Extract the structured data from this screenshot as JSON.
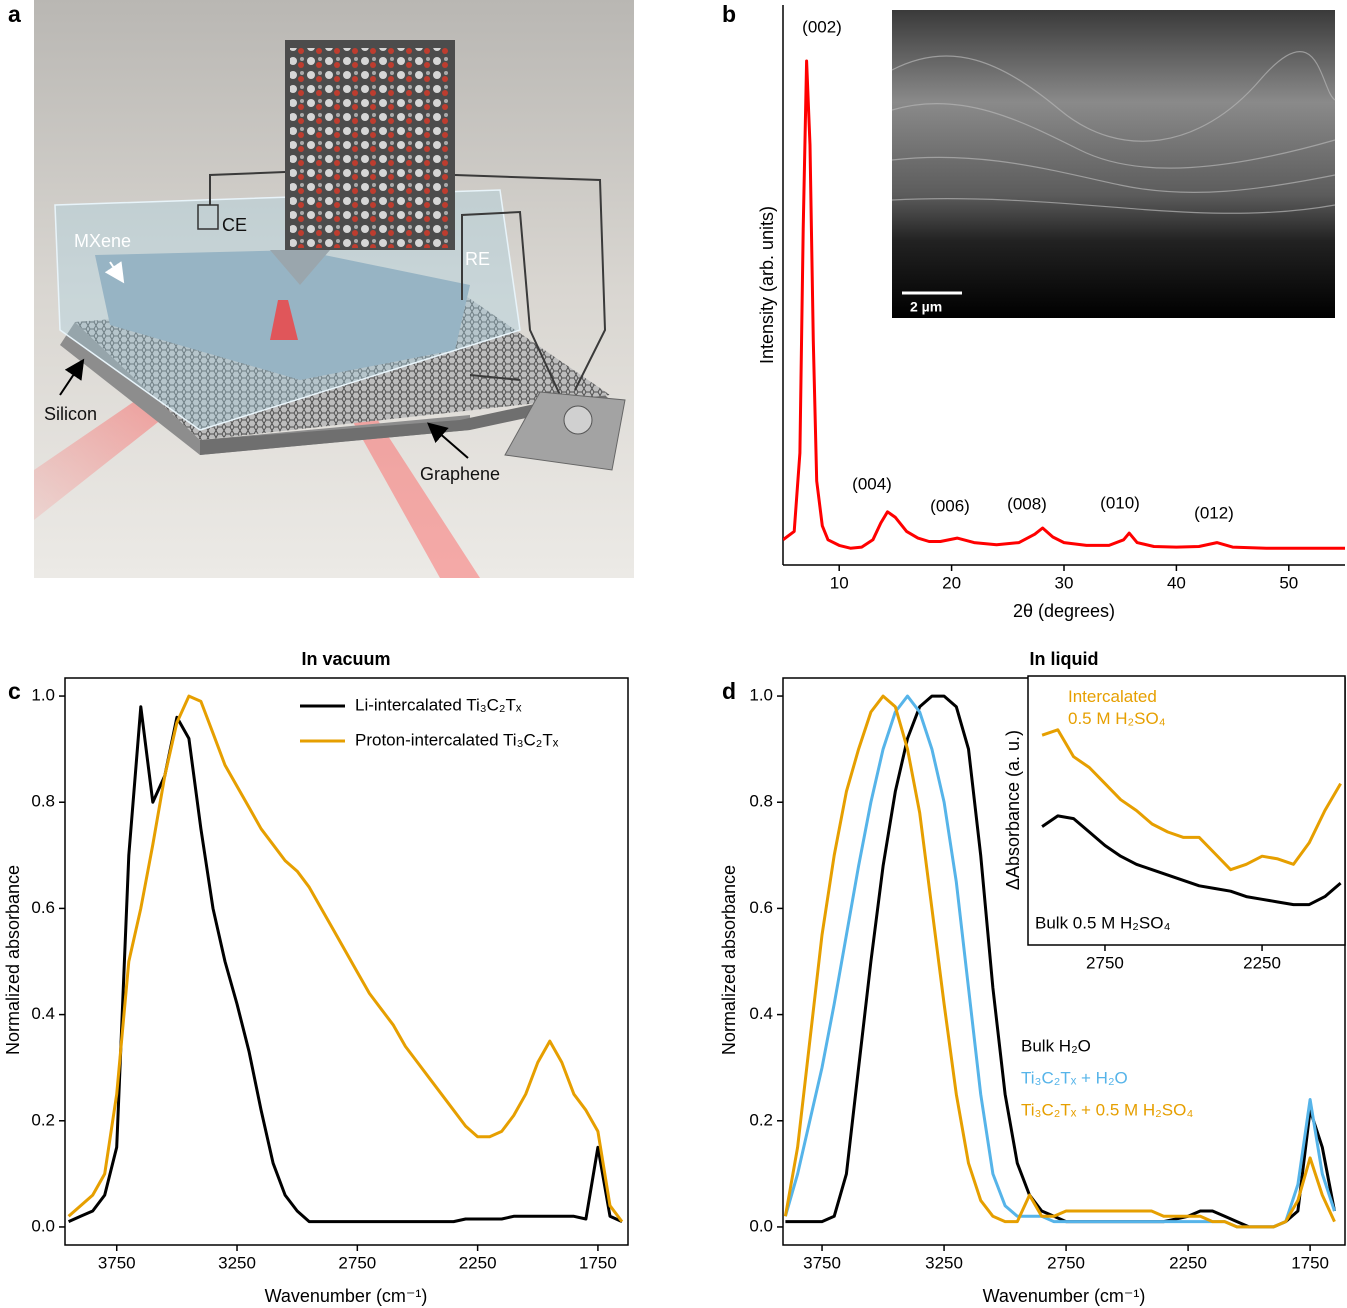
{
  "panel_labels": [
    "a",
    "b",
    "c",
    "d"
  ],
  "illustration": {
    "labels": [
      "CE",
      "MXene",
      "RE",
      "Silicon",
      "Graphene"
    ]
  },
  "chart_data": [
    {
      "type": "line",
      "x_label": "2θ (degrees)",
      "y_label": "Intensity (arb. units)",
      "x": [
        5,
        6,
        6.5,
        6.8,
        7.1,
        7.4,
        7.7,
        8,
        8.5,
        9,
        10,
        11,
        12,
        13,
        13.7,
        14.3,
        15,
        16,
        17,
        18,
        19,
        20.5,
        22,
        24,
        26,
        27.4,
        28.1,
        29,
        30,
        32,
        34,
        35.3,
        35.8,
        36.5,
        38,
        40,
        42,
        43.6,
        45,
        48,
        51,
        55
      ],
      "series": [
        {
          "color": "#ff0000",
          "values": [
            0.045,
            0.06,
            0.2,
            0.6,
            0.9,
            0.75,
            0.4,
            0.15,
            0.07,
            0.045,
            0.035,
            0.03,
            0.032,
            0.045,
            0.075,
            0.095,
            0.085,
            0.06,
            0.048,
            0.042,
            0.042,
            0.048,
            0.04,
            0.036,
            0.04,
            0.055,
            0.066,
            0.05,
            0.04,
            0.035,
            0.035,
            0.045,
            0.057,
            0.04,
            0.033,
            0.032,
            0.033,
            0.04,
            0.032,
            0.03,
            0.03,
            0.03
          ]
        }
      ],
      "xlim": [
        5,
        55
      ],
      "xticks": [
        10,
        20,
        30,
        40,
        50
      ],
      "ylim": [
        0,
        1
      ],
      "annotations": [
        "(002)",
        "(004)",
        "(006)",
        "(008)",
        "(010)",
        "(012)"
      ],
      "inset_scale_bar": "2 µm"
    },
    {
      "type": "line",
      "title": "In vacuum",
      "x_label": "Wavenumber (cm⁻¹)",
      "y_label": "Normalized absorbance",
      "x": [
        3950,
        3900,
        3850,
        3800,
        3750,
        3700,
        3650,
        3600,
        3550,
        3500,
        3450,
        3400,
        3350,
        3300,
        3250,
        3200,
        3150,
        3100,
        3050,
        3000,
        2950,
        2900,
        2850,
        2800,
        2750,
        2700,
        2650,
        2600,
        2550,
        2500,
        2450,
        2400,
        2350,
        2300,
        2250,
        2200,
        2150,
        2100,
        2050,
        2000,
        1950,
        1900,
        1850,
        1800,
        1750,
        1700,
        1650
      ],
      "series": [
        {
          "name": "Li-intercalated Ti₃C₂Tₓ",
          "color": "#000000",
          "values": [
            0.01,
            0.02,
            0.03,
            0.06,
            0.15,
            0.7,
            0.98,
            0.8,
            0.85,
            0.96,
            0.92,
            0.75,
            0.6,
            0.5,
            0.42,
            0.33,
            0.22,
            0.12,
            0.06,
            0.03,
            0.01,
            0.01,
            0.01,
            0.01,
            0.01,
            0.01,
            0.01,
            0.01,
            0.01,
            0.01,
            0.01,
            0.01,
            0.01,
            0.015,
            0.015,
            0.015,
            0.015,
            0.02,
            0.02,
            0.02,
            0.02,
            0.02,
            0.02,
            0.015,
            0.15,
            0.02,
            0.01
          ]
        },
        {
          "name": "Proton-intercalated Ti₃C₂Tₓ",
          "color": "#e69f00",
          "values": [
            0.02,
            0.04,
            0.06,
            0.1,
            0.25,
            0.5,
            0.6,
            0.72,
            0.85,
            0.95,
            1.0,
            0.99,
            0.93,
            0.87,
            0.83,
            0.79,
            0.75,
            0.72,
            0.69,
            0.67,
            0.64,
            0.6,
            0.56,
            0.52,
            0.48,
            0.44,
            0.41,
            0.38,
            0.34,
            0.31,
            0.28,
            0.25,
            0.22,
            0.19,
            0.17,
            0.17,
            0.18,
            0.21,
            0.25,
            0.31,
            0.35,
            0.31,
            0.25,
            0.22,
            0.18,
            0.04,
            0.01
          ]
        }
      ],
      "xlim": [
        3965,
        1625
      ],
      "xticks": [
        3750,
        3250,
        2750,
        2250,
        1750
      ],
      "ylim": [
        -0.034,
        1.034
      ],
      "yticks": [
        {
          "value": 0,
          "label": "0.0"
        },
        {
          "value": 0.2,
          "label": "0.2"
        },
        {
          "value": 0.4,
          "label": "0.4"
        },
        {
          "value": 0.6,
          "label": "0.6"
        },
        {
          "value": 0.8,
          "label": "0.8"
        },
        {
          "value": 1,
          "label": "1.0"
        }
      ],
      "legend": "upper right"
    },
    {
      "type": "line",
      "title": "In liquid",
      "x_label": "Wavenumber (cm⁻¹)",
      "y_label": "Normalized absorbance",
      "x": [
        3900,
        3850,
        3800,
        3750,
        3700,
        3650,
        3600,
        3550,
        3500,
        3450,
        3400,
        3350,
        3300,
        3250,
        3200,
        3150,
        3100,
        3050,
        3000,
        2950,
        2900,
        2850,
        2800,
        2750,
        2700,
        2650,
        2600,
        2550,
        2500,
        2450,
        2400,
        2350,
        2300,
        2250,
        2200,
        2150,
        2100,
        2050,
        2000,
        1950,
        1900,
        1850,
        1800,
        1750,
        1700,
        1650
      ],
      "series": [
        {
          "name": "Bulk H₂O",
          "color": "#000000",
          "values": [
            0.01,
            0.01,
            0.01,
            0.01,
            0.02,
            0.1,
            0.3,
            0.5,
            0.68,
            0.82,
            0.92,
            0.98,
            1.0,
            1.0,
            0.98,
            0.9,
            0.7,
            0.45,
            0.25,
            0.12,
            0.06,
            0.03,
            0.02,
            0.01,
            0.01,
            0.01,
            0.01,
            0.01,
            0.01,
            0.01,
            0.01,
            0.01,
            0.015,
            0.02,
            0.03,
            0.03,
            0.02,
            0.01,
            0.0,
            0.0,
            0.0,
            0.01,
            0.03,
            0.22,
            0.15,
            0.03
          ]
        },
        {
          "name": "Ti₃C₂Tₓ + H₂O",
          "color": "#56b4e9",
          "values": [
            0.02,
            0.1,
            0.2,
            0.3,
            0.42,
            0.55,
            0.68,
            0.8,
            0.9,
            0.97,
            1.0,
            0.97,
            0.9,
            0.8,
            0.65,
            0.45,
            0.25,
            0.1,
            0.04,
            0.02,
            0.02,
            0.02,
            0.01,
            0.01,
            0.01,
            0.01,
            0.01,
            0.01,
            0.01,
            0.01,
            0.01,
            0.01,
            0.01,
            0.01,
            0.01,
            0.01,
            0.01,
            0.0,
            0.0,
            0.0,
            0.0,
            0.01,
            0.08,
            0.24,
            0.1,
            0.03
          ]
        },
        {
          "name": "Ti₃C₂Tₓ + 0.5 M H₂SO₄",
          "color": "#e69f00",
          "values": [
            0.02,
            0.15,
            0.35,
            0.55,
            0.7,
            0.82,
            0.9,
            0.97,
            1.0,
            0.98,
            0.9,
            0.78,
            0.6,
            0.42,
            0.25,
            0.12,
            0.05,
            0.02,
            0.01,
            0.01,
            0.06,
            0.02,
            0.02,
            0.03,
            0.03,
            0.03,
            0.03,
            0.03,
            0.03,
            0.03,
            0.03,
            0.02,
            0.02,
            0.02,
            0.02,
            0.01,
            0.01,
            0.0,
            0.0,
            0.0,
            0.0,
            0.01,
            0.05,
            0.13,
            0.06,
            0.01
          ]
        }
      ],
      "xlim": [
        3910,
        1607
      ],
      "xticks": [
        3750,
        3250,
        2750,
        2250,
        1750
      ],
      "ylim": [
        -0.034,
        1.034
      ],
      "yticks": [
        {
          "value": 0,
          "label": "0.0"
        },
        {
          "value": 0.2,
          "label": "0.2"
        },
        {
          "value": 0.4,
          "label": "0.4"
        },
        {
          "value": 0.6,
          "label": "0.6"
        },
        {
          "value": 0.8,
          "label": "0.8"
        },
        {
          "value": 1,
          "label": "1.0"
        }
      ],
      "legend": "lower right"
    },
    {
      "type": "line",
      "y_label": "ΔAbsorbance (a. u.)",
      "x": [
        2950,
        2900,
        2850,
        2800,
        2750,
        2700,
        2650,
        2600,
        2550,
        2500,
        2450,
        2400,
        2350,
        2300,
        2250,
        2200,
        2150,
        2100,
        2050,
        2000
      ],
      "series": [
        {
          "name": "Intercalated 0.5 M H₂SO₄",
          "color": "#e69f00",
          "values": [
            0.78,
            0.8,
            0.7,
            0.66,
            0.6,
            0.54,
            0.5,
            0.45,
            0.42,
            0.4,
            0.4,
            0.34,
            0.28,
            0.3,
            0.33,
            0.32,
            0.3,
            0.38,
            0.5,
            0.6
          ]
        },
        {
          "name": "Bulk 0.5 M H₂SO₄",
          "color": "#000000",
          "values": [
            0.44,
            0.48,
            0.47,
            0.42,
            0.37,
            0.33,
            0.3,
            0.28,
            0.26,
            0.24,
            0.22,
            0.21,
            0.2,
            0.18,
            0.17,
            0.16,
            0.15,
            0.15,
            0.18,
            0.23
          ]
        }
      ],
      "xlim": [
        2995,
        1986
      ],
      "xticks": [
        2750,
        2250
      ],
      "ylim": [
        0,
        1
      ]
    }
  ]
}
